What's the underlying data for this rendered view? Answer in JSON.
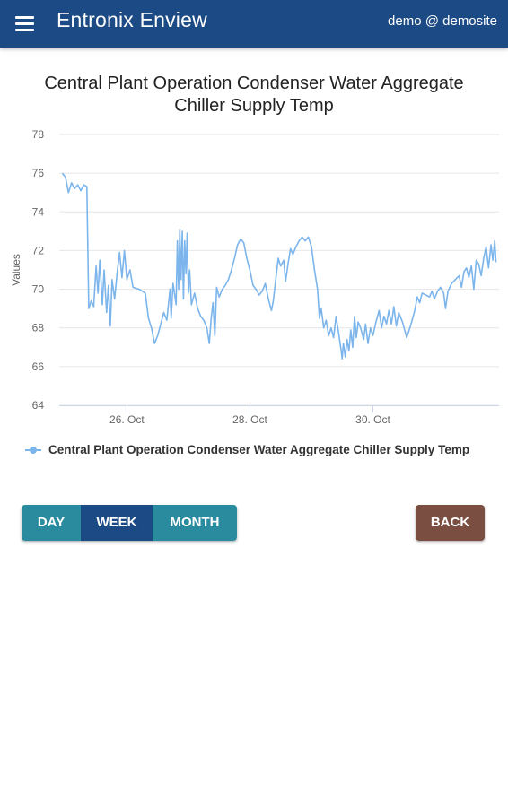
{
  "appbar": {
    "menu_icon": "menu-icon",
    "title": "Entronix Enview",
    "user": "demo @ demosite",
    "color": "#1b4a85"
  },
  "chart_title": {
    "line1": "Central Plant Operation Condenser Water Aggregate",
    "line2": "Chiller Supply Temp"
  },
  "chart_data": {
    "type": "line",
    "title": "Central Plant Operation Condenser Water Aggregate Chiller Supply Temp",
    "xlabel": "",
    "ylabel": "Values",
    "ylim": [
      64,
      78
    ],
    "yticks": [
      "64",
      "66",
      "68",
      "70",
      "72",
      "74",
      "76",
      "78"
    ],
    "xticks": [
      {
        "label": "26. Oct",
        "day": 26
      },
      {
        "label": "28. Oct",
        "day": 28
      },
      {
        "label": "30. Oct",
        "day": 30
      }
    ],
    "xrange_days": [
      24.9,
      32.05
    ],
    "grid": true,
    "legend_position": "bottom-left",
    "series": [
      {
        "name": "Central Plant Operation Condenser Water Aggregate Chiller Supply Temp",
        "color": "#7cb5ec",
        "points": [
          [
            24.95,
            76.0
          ],
          [
            25.0,
            75.8
          ],
          [
            25.05,
            75.0
          ],
          [
            25.1,
            75.5
          ],
          [
            25.15,
            75.2
          ],
          [
            25.2,
            75.4
          ],
          [
            25.25,
            75.1
          ],
          [
            25.3,
            75.4
          ],
          [
            25.35,
            75.3
          ],
          [
            25.38,
            69.0
          ],
          [
            25.42,
            69.4
          ],
          [
            25.46,
            69.1
          ],
          [
            25.5,
            71.2
          ],
          [
            25.53,
            69.8
          ],
          [
            25.56,
            71.5
          ],
          [
            25.6,
            69.2
          ],
          [
            25.63,
            71.0
          ],
          [
            25.67,
            68.8
          ],
          [
            25.7,
            70.2
          ],
          [
            25.73,
            68.1
          ],
          [
            25.76,
            70.5
          ],
          [
            25.8,
            69.5
          ],
          [
            25.84,
            70.8
          ],
          [
            25.88,
            71.9
          ],
          [
            25.92,
            70.6
          ],
          [
            25.96,
            72.0
          ],
          [
            26.0,
            70.5
          ],
          [
            26.05,
            71.0
          ],
          [
            26.1,
            70.1
          ],
          [
            26.2,
            70.0
          ],
          [
            26.3,
            69.8
          ],
          [
            26.35,
            68.5
          ],
          [
            26.4,
            68.0
          ],
          [
            26.45,
            67.2
          ],
          [
            26.5,
            67.6
          ],
          [
            26.55,
            68.2
          ],
          [
            26.6,
            68.8
          ],
          [
            26.65,
            68.4
          ],
          [
            26.7,
            70.0
          ],
          [
            26.72,
            68.5
          ],
          [
            26.75,
            70.3
          ],
          [
            26.8,
            69.2
          ],
          [
            26.82,
            72.5
          ],
          [
            26.84,
            70.0
          ],
          [
            26.86,
            73.1
          ],
          [
            26.88,
            70.5
          ],
          [
            26.9,
            73.0
          ],
          [
            26.92,
            69.5
          ],
          [
            26.94,
            72.5
          ],
          [
            26.96,
            70.8
          ],
          [
            26.98,
            72.9
          ],
          [
            27.0,
            69.8
          ],
          [
            27.02,
            71.0
          ],
          [
            27.05,
            69.2
          ],
          [
            27.1,
            69.8
          ],
          [
            27.15,
            69.0
          ],
          [
            27.2,
            68.6
          ],
          [
            27.25,
            68.4
          ],
          [
            27.3,
            68.0
          ],
          [
            27.34,
            67.2
          ],
          [
            27.37,
            68.5
          ],
          [
            27.4,
            69.3
          ],
          [
            27.43,
            67.6
          ],
          [
            27.46,
            70.1
          ],
          [
            27.5,
            69.6
          ],
          [
            27.55,
            70.0
          ],
          [
            27.6,
            70.2
          ],
          [
            27.65,
            70.5
          ],
          [
            27.7,
            71.0
          ],
          [
            27.75,
            71.6
          ],
          [
            27.8,
            72.3
          ],
          [
            27.85,
            72.6
          ],
          [
            27.9,
            72.4
          ],
          [
            27.95,
            71.6
          ],
          [
            28.0,
            71.0
          ],
          [
            28.05,
            70.2
          ],
          [
            28.1,
            70.0
          ],
          [
            28.15,
            69.7
          ],
          [
            28.2,
            69.9
          ],
          [
            28.25,
            70.3
          ],
          [
            28.3,
            69.5
          ],
          [
            28.35,
            68.9
          ],
          [
            28.38,
            69.4
          ],
          [
            28.42,
            70.5
          ],
          [
            28.46,
            71.6
          ],
          [
            28.5,
            71.2
          ],
          [
            28.55,
            71.5
          ],
          [
            28.58,
            70.4
          ],
          [
            28.62,
            71.3
          ],
          [
            28.66,
            72.1
          ],
          [
            28.7,
            71.8
          ],
          [
            28.75,
            72.2
          ],
          [
            28.8,
            72.5
          ],
          [
            28.85,
            72.7
          ],
          [
            28.9,
            72.5
          ],
          [
            28.95,
            72.7
          ],
          [
            29.0,
            72.2
          ],
          [
            29.05,
            71.0
          ],
          [
            29.1,
            70.0
          ],
          [
            29.13,
            68.5
          ],
          [
            29.16,
            69.0
          ],
          [
            29.2,
            68.0
          ],
          [
            29.24,
            68.4
          ],
          [
            29.28,
            67.6
          ],
          [
            29.32,
            68.0
          ],
          [
            29.36,
            67.5
          ],
          [
            29.4,
            68.6
          ],
          [
            29.44,
            67.8
          ],
          [
            29.48,
            66.9
          ],
          [
            29.5,
            66.4
          ],
          [
            29.52,
            67.2
          ],
          [
            29.55,
            66.5
          ],
          [
            29.58,
            67.4
          ],
          [
            29.61,
            66.8
          ],
          [
            29.64,
            67.9
          ],
          [
            29.67,
            67.0
          ],
          [
            29.7,
            68.6
          ],
          [
            29.73,
            67.5
          ],
          [
            29.76,
            68.3
          ],
          [
            29.8,
            68.0
          ],
          [
            29.85,
            67.4
          ],
          [
            29.88,
            68.2
          ],
          [
            29.92,
            67.2
          ],
          [
            29.96,
            68.0
          ],
          [
            30.0,
            67.6
          ],
          [
            30.05,
            68.3
          ],
          [
            30.1,
            68.9
          ],
          [
            30.14,
            68.0
          ],
          [
            30.18,
            68.6
          ],
          [
            30.22,
            68.2
          ],
          [
            30.26,
            68.9
          ],
          [
            30.3,
            68.2
          ],
          [
            30.34,
            69.1
          ],
          [
            30.38,
            68.1
          ],
          [
            30.42,
            68.8
          ],
          [
            30.48,
            68.3
          ],
          [
            30.55,
            67.5
          ],
          [
            30.62,
            68.2
          ],
          [
            30.68,
            68.9
          ],
          [
            30.72,
            69.6
          ],
          [
            30.76,
            69.3
          ],
          [
            30.8,
            69.8
          ],
          [
            30.86,
            69.7
          ],
          [
            30.92,
            69.6
          ],
          [
            30.96,
            69.9
          ],
          [
            31.0,
            69.5
          ],
          [
            31.05,
            69.9
          ],
          [
            31.1,
            70.1
          ],
          [
            31.15,
            69.8
          ],
          [
            31.18,
            69.0
          ],
          [
            31.22,
            69.9
          ],
          [
            31.28,
            70.3
          ],
          [
            31.34,
            70.5
          ],
          [
            31.4,
            70.7
          ],
          [
            31.44,
            70.1
          ],
          [
            31.48,
            70.9
          ],
          [
            31.52,
            71.1
          ],
          [
            31.56,
            70.6
          ],
          [
            31.6,
            71.2
          ],
          [
            31.64,
            70.0
          ],
          [
            31.68,
            71.5
          ],
          [
            31.72,
            71.3
          ],
          [
            31.76,
            70.7
          ],
          [
            31.8,
            71.6
          ],
          [
            31.84,
            72.2
          ],
          [
            31.88,
            71.1
          ],
          [
            31.92,
            72.3
          ],
          [
            31.95,
            71.5
          ],
          [
            31.98,
            72.5
          ],
          [
            32.0,
            71.4
          ]
        ]
      }
    ]
  },
  "buttons": {
    "day": "DAY",
    "week": "WEEK",
    "month": "MONTH",
    "active": "WEEK",
    "back": "BACK",
    "range_color": "#2a8b9e",
    "back_color": "#7a4e41"
  }
}
